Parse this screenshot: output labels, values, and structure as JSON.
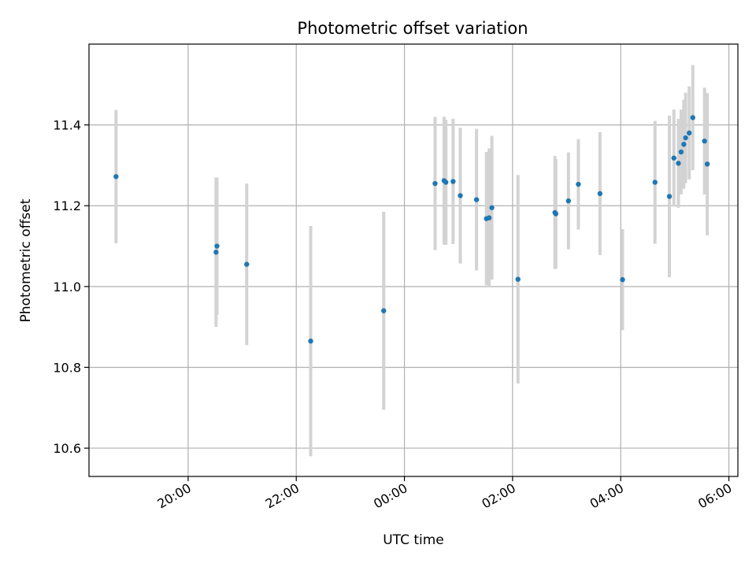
{
  "chart_data": {
    "type": "scatter",
    "title": "Photometric offset variation",
    "xlabel": "UTC time",
    "ylabel": "Photometric offset",
    "x_axis_type": "time",
    "xlim": [
      "18:10",
      "06:10"
    ],
    "ylim": [
      10.53,
      11.6
    ],
    "xticks": [
      "20:00",
      "22:00",
      "00:00",
      "02:00",
      "04:00",
      "06:00"
    ],
    "yticks": [
      10.6,
      10.8,
      11.0,
      11.2,
      11.4
    ],
    "grid": true,
    "legend": "none",
    "colors": {
      "points": "#1f77b4",
      "errorbars": "#d3d3d3",
      "grid": "#b0b0b0"
    },
    "points": [
      {
        "x": "18:40",
        "y": 11.272,
        "err": 0.165
      },
      {
        "x": "20:31",
        "y": 11.085,
        "err": 0.185
      },
      {
        "x": "20:32",
        "y": 11.1,
        "err": 0.17
      },
      {
        "x": "21:05",
        "y": 11.055,
        "err": 0.2
      },
      {
        "x": "22:16",
        "y": 10.865,
        "err": 0.285
      },
      {
        "x": "23:37",
        "y": 10.94,
        "err": 0.245
      },
      {
        "x": "00:34",
        "y": 11.255,
        "err": 0.165
      },
      {
        "x": "00:44",
        "y": 11.262,
        "err": 0.158
      },
      {
        "x": "00:46",
        "y": 11.258,
        "err": 0.155
      },
      {
        "x": "00:54",
        "y": 11.26,
        "err": 0.155
      },
      {
        "x": "01:02",
        "y": 11.225,
        "err": 0.168
      },
      {
        "x": "01:20",
        "y": 11.215,
        "err": 0.175
      },
      {
        "x": "01:31",
        "y": 11.168,
        "err": 0.165
      },
      {
        "x": "01:34",
        "y": 11.17,
        "err": 0.172
      },
      {
        "x": "01:37",
        "y": 11.195,
        "err": 0.178
      },
      {
        "x": "02:06",
        "y": 11.018,
        "err": 0.258
      },
      {
        "x": "02:47",
        "y": 11.183,
        "err": 0.14
      },
      {
        "x": "02:48",
        "y": 11.18,
        "err": 0.135
      },
      {
        "x": "03:02",
        "y": 11.212,
        "err": 0.12
      },
      {
        "x": "03:13",
        "y": 11.253,
        "err": 0.112
      },
      {
        "x": "03:37",
        "y": 11.23,
        "err": 0.152
      },
      {
        "x": "04:02",
        "y": 11.017,
        "err": 0.125
      },
      {
        "x": "04:38",
        "y": 11.258,
        "err": 0.152
      },
      {
        "x": "04:54",
        "y": 11.223,
        "err": 0.2
      },
      {
        "x": "04:59",
        "y": 11.318,
        "err": 0.12
      },
      {
        "x": "05:04",
        "y": 11.305,
        "err": 0.11
      },
      {
        "x": "05:07",
        "y": 11.333,
        "err": 0.105
      },
      {
        "x": "05:10",
        "y": 11.352,
        "err": 0.11
      },
      {
        "x": "05:12",
        "y": 11.368,
        "err": 0.112
      },
      {
        "x": "05:16",
        "y": 11.38,
        "err": 0.115
      },
      {
        "x": "05:20",
        "y": 11.418,
        "err": 0.13
      },
      {
        "x": "05:33",
        "y": 11.36,
        "err": 0.132
      },
      {
        "x": "05:36",
        "y": 11.303,
        "err": 0.176
      }
    ]
  }
}
